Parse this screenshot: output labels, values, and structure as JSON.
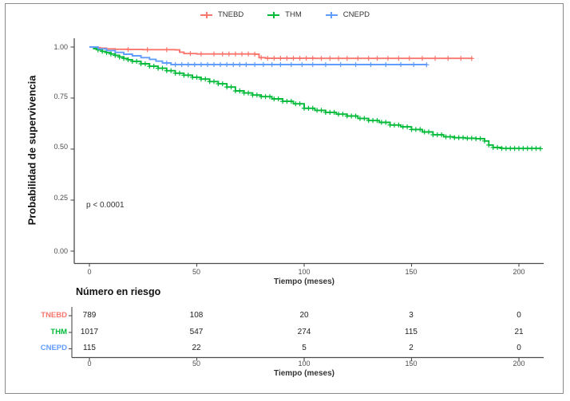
{
  "figure": {
    "legend": [
      {
        "label": "TNEBD",
        "color": "#F8766D"
      },
      {
        "label": "THM",
        "color": "#00BA38"
      },
      {
        "label": "CNEPD",
        "color": "#619CFF"
      }
    ],
    "y_axis_title": "Probabilidad de supervivencia",
    "x_axis_title": "Tiempo (meses)",
    "p_value": "p < 0.0001",
    "risk_table": {
      "title": "Número en riesgo",
      "x_axis_title": "Tiempo (meses)",
      "rows": [
        {
          "label": "TNEBD",
          "color": "#F8766D",
          "values": [
            "789",
            "108",
            "20",
            "3",
            "0"
          ]
        },
        {
          "label": "THM",
          "color": "#00BA38",
          "values": [
            "1017",
            "547",
            "274",
            "115",
            "21"
          ]
        },
        {
          "label": "CNEPD",
          "color": "#619CFF",
          "values": [
            "115",
            "22",
            "5",
            "2",
            "0"
          ]
        }
      ]
    }
  },
  "chart_data": {
    "type": "line",
    "subtype": "kaplan-meier-step-curves",
    "title": "",
    "xlabel": "Tiempo (meses)",
    "ylabel": "Probabilidad de supervivencia",
    "xlim": [
      0,
      210
    ],
    "ylim": [
      0,
      1
    ],
    "grid": false,
    "legend_position": "top",
    "x_ticks": [
      0,
      50,
      100,
      150,
      200
    ],
    "y_ticks": [
      1.0,
      0.75,
      0.5,
      0.25,
      0.0
    ],
    "x_tick_labels": [
      "0",
      "50",
      "100",
      "150",
      "200"
    ],
    "y_tick_labels": [
      "1.00",
      "0.75",
      "0.50",
      "0.25",
      "0.00"
    ],
    "annotations": [
      {
        "text": "p < 0.0001",
        "x": 8,
        "y": 0.27
      }
    ],
    "series": [
      {
        "name": "TNEBD",
        "color": "#F8766D",
        "points": [
          [
            0,
            1.0
          ],
          [
            2,
            0.997
          ],
          [
            5,
            0.994
          ],
          [
            8,
            0.991
          ],
          [
            12,
            0.989
          ],
          [
            18,
            0.988
          ],
          [
            25,
            0.987
          ],
          [
            40,
            0.986
          ],
          [
            42,
            0.975
          ],
          [
            44,
            0.968
          ],
          [
            50,
            0.966
          ],
          [
            77,
            0.965
          ],
          [
            79,
            0.948
          ],
          [
            82,
            0.945
          ],
          [
            105,
            0.9445
          ],
          [
            178,
            0.944
          ]
        ],
        "censor_times": [
          18,
          27,
          36,
          47,
          52,
          58,
          62,
          65,
          68,
          71,
          74,
          77,
          80,
          83,
          86,
          89,
          92,
          95,
          98,
          101,
          104,
          108,
          112,
          116,
          120,
          125,
          130,
          134,
          139,
          144,
          149,
          155,
          161,
          167,
          173,
          178
        ]
      },
      {
        "name": "THM",
        "color": "#00BA38",
        "points": [
          [
            0,
            1.0
          ],
          [
            2,
            0.992
          ],
          [
            4,
            0.986
          ],
          [
            6,
            0.979
          ],
          [
            8,
            0.973
          ],
          [
            10,
            0.966
          ],
          [
            12,
            0.959
          ],
          [
            14,
            0.951
          ],
          [
            16,
            0.944
          ],
          [
            18,
            0.938
          ],
          [
            20,
            0.93
          ],
          [
            24,
            0.918
          ],
          [
            28,
            0.906
          ],
          [
            32,
            0.896
          ],
          [
            36,
            0.884
          ],
          [
            40,
            0.872
          ],
          [
            44,
            0.862
          ],
          [
            48,
            0.852
          ],
          [
            52,
            0.843
          ],
          [
            56,
            0.831
          ],
          [
            60,
            0.82
          ],
          [
            64,
            0.804
          ],
          [
            68,
            0.785
          ],
          [
            72,
            0.775
          ],
          [
            76,
            0.765
          ],
          [
            80,
            0.757
          ],
          [
            85,
            0.746
          ],
          [
            90,
            0.734
          ],
          [
            95,
            0.722
          ],
          [
            100,
            0.7
          ],
          [
            105,
            0.69
          ],
          [
            110,
            0.68
          ],
          [
            115,
            0.671
          ],
          [
            120,
            0.662
          ],
          [
            125,
            0.65
          ],
          [
            130,
            0.64
          ],
          [
            135,
            0.631
          ],
          [
            140,
            0.618
          ],
          [
            145,
            0.609
          ],
          [
            150,
            0.596
          ],
          [
            155,
            0.584
          ],
          [
            160,
            0.57
          ],
          [
            165,
            0.56
          ],
          [
            170,
            0.556
          ],
          [
            175,
            0.553
          ],
          [
            180,
            0.551
          ],
          [
            184,
            0.54
          ],
          [
            186,
            0.52
          ],
          [
            188,
            0.508
          ],
          [
            192,
            0.503
          ],
          [
            210,
            0.502
          ]
        ],
        "censor_times": [
          4,
          6,
          8,
          10,
          12,
          14,
          16,
          18,
          20,
          22,
          24,
          26,
          28,
          30,
          32,
          34,
          36,
          38,
          40,
          42,
          44,
          46,
          48,
          50,
          52,
          54,
          56,
          58,
          60,
          62,
          64,
          66,
          68,
          70,
          72,
          74,
          76,
          78,
          80,
          82,
          84,
          86,
          88,
          90,
          92,
          94,
          96,
          98,
          100,
          102,
          104,
          106,
          108,
          110,
          112,
          114,
          116,
          118,
          120,
          122,
          124,
          126,
          128,
          130,
          132,
          134,
          136,
          138,
          140,
          142,
          144,
          146,
          148,
          150,
          152,
          154,
          156,
          158,
          160,
          162,
          164,
          166,
          168,
          170,
          172,
          174,
          176,
          178,
          180,
          182,
          184,
          186,
          188,
          190,
          192,
          194,
          196,
          198,
          200,
          202,
          204,
          206,
          208,
          210
        ]
      },
      {
        "name": "CNEPD",
        "color": "#619CFF",
        "points": [
          [
            0,
            1.0
          ],
          [
            4,
            0.991
          ],
          [
            8,
            0.983
          ],
          [
            12,
            0.974
          ],
          [
            16,
            0.965
          ],
          [
            20,
            0.957
          ],
          [
            24,
            0.948
          ],
          [
            28,
            0.94
          ],
          [
            31,
            0.931
          ],
          [
            34,
            0.922
          ],
          [
            38,
            0.914
          ],
          [
            157,
            0.913
          ]
        ],
        "censor_times": [
          36,
          40,
          43,
          46,
          49,
          52,
          55,
          58,
          61,
          64,
          67,
          70,
          73,
          77,
          81,
          85,
          89,
          94,
          99,
          104,
          110,
          117,
          124,
          131,
          138,
          145,
          151,
          157
        ]
      }
    ],
    "risk_table": {
      "title": "Número en riesgo",
      "time_points": [
        0,
        50,
        100,
        150,
        200
      ],
      "groups": [
        {
          "name": "TNEBD",
          "at_risk": [
            789,
            108,
            20,
            3,
            0
          ]
        },
        {
          "name": "THM",
          "at_risk": [
            1017,
            547,
            274,
            115,
            21
          ]
        },
        {
          "name": "CNEPD",
          "at_risk": [
            115,
            22,
            5,
            2,
            0
          ]
        }
      ]
    }
  }
}
